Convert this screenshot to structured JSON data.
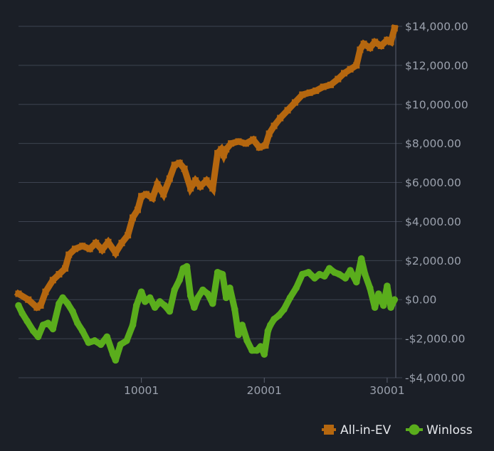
{
  "chart_data": {
    "type": "line",
    "title": "",
    "xlabel": "",
    "ylabel": "",
    "xlim": [
      1,
      30701
    ],
    "ylim": [
      -4000,
      14000
    ],
    "x_ticks": [
      10001,
      20001,
      30001
    ],
    "x_tick_labels": [
      "10001",
      "20001",
      "30001"
    ],
    "y_ticks": [
      14000,
      12000,
      10000,
      8000,
      6000,
      4000,
      2000,
      0,
      -2000,
      -4000
    ],
    "y_tick_labels": [
      "$14,000.00",
      "$12,000.00",
      "$10,000.00",
      "$8,000.00",
      "$6,000.00",
      "$4,000.00",
      "$2,000.00",
      "$0.00",
      "-$2,000.00",
      "-$4,000.00"
    ],
    "y_axis_side": "right",
    "grid": true,
    "legend_position": "bottom-right",
    "series": [
      {
        "name": "All-in-EV",
        "color": "#b5670f",
        "marker": "square",
        "x": [
          1,
          800,
          1500,
          1800,
          2200,
          2800,
          3300,
          3800,
          4100,
          4600,
          5200,
          5800,
          6300,
          6800,
          7300,
          7900,
          8400,
          8900,
          9300,
          9700,
          10001,
          10400,
          10900,
          11300,
          11800,
          12300,
          12700,
          13100,
          13500,
          14000,
          14400,
          14800,
          15300,
          15800,
          16200,
          16500,
          16700,
          16900,
          17300,
          17900,
          18500,
          19100,
          19600,
          20100,
          20400,
          20800,
          21300,
          21900,
          22500,
          23100,
          23700,
          24200,
          24800,
          25400,
          26000,
          26500,
          27000,
          27500,
          27800,
          28100,
          28600,
          29000,
          29500,
          30000,
          30300,
          30600
        ],
        "values": [
          300,
          0,
          -400,
          -300,
          400,
          1000,
          1300,
          1600,
          2300,
          2600,
          2750,
          2600,
          2900,
          2550,
          2950,
          2400,
          2900,
          3300,
          4200,
          4600,
          5300,
          5400,
          5200,
          5900,
          5400,
          6200,
          6900,
          7000,
          6700,
          5700,
          6100,
          5800,
          6100,
          5700,
          7500,
          7700,
          7400,
          7700,
          8000,
          8100,
          8000,
          8200,
          7800,
          7900,
          8500,
          8900,
          9300,
          9700,
          10100,
          10500,
          10600,
          10700,
          10900,
          11000,
          11300,
          11600,
          11800,
          12000,
          12800,
          13100,
          12900,
          13200,
          13000,
          13300,
          13200,
          13900
        ]
      },
      {
        "name": "Winloss",
        "color": "#5aad1c",
        "marker": "circle",
        "x": [
          1,
          300,
          700,
          1200,
          1600,
          2000,
          2400,
          2800,
          3300,
          3600,
          4000,
          4400,
          4800,
          5200,
          5700,
          6200,
          6700,
          7200,
          7700,
          7900,
          8300,
          8800,
          9300,
          9600,
          10001,
          10300,
          10700,
          11100,
          11500,
          11900,
          12300,
          12700,
          13100,
          13400,
          13700,
          14000,
          14300,
          14600,
          15000,
          15400,
          15800,
          16200,
          16600,
          16900,
          17200,
          17600,
          17900,
          18200,
          18600,
          19000,
          19400,
          19700,
          20001,
          20300,
          20500,
          20800,
          21200,
          21600,
          22100,
          22600,
          23100,
          23600,
          24100,
          24500,
          24900,
          25300,
          25700,
          26100,
          26600,
          27000,
          27500,
          27900,
          28200,
          28600,
          29000,
          29300,
          29700,
          30000,
          30300,
          30600
        ],
        "values": [
          -300,
          -700,
          -1100,
          -1600,
          -1900,
          -1300,
          -1200,
          -1500,
          -200,
          100,
          -200,
          -600,
          -1200,
          -1600,
          -2200,
          -2100,
          -2300,
          -1900,
          -2800,
          -3100,
          -2300,
          -2100,
          -1300,
          -300,
          400,
          -100,
          100,
          -400,
          -100,
          -300,
          -600,
          500,
          1000,
          1600,
          1700,
          200,
          -400,
          100,
          500,
          300,
          -200,
          1400,
          1300,
          100,
          600,
          -500,
          -1800,
          -1300,
          -2100,
          -2600,
          -2600,
          -2400,
          -2800,
          -1600,
          -1300,
          -1000,
          -800,
          -500,
          100,
          600,
          1300,
          1400,
          1100,
          1300,
          1200,
          1600,
          1400,
          1300,
          1100,
          1500,
          900,
          2100,
          1300,
          600,
          -400,
          300,
          -300,
          700,
          -400,
          0
        ]
      }
    ]
  }
}
